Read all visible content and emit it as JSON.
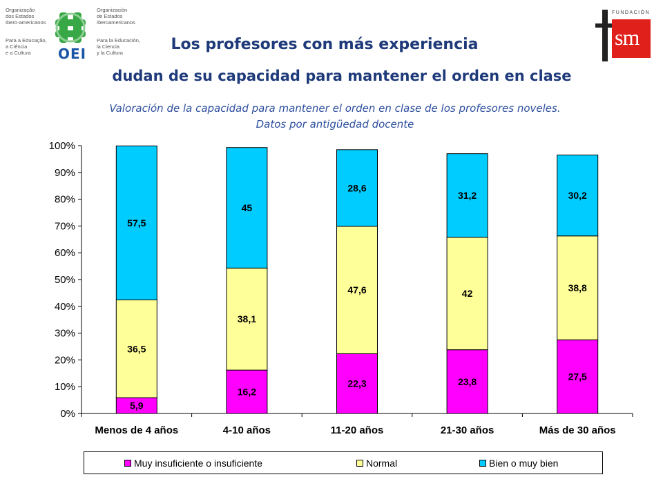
{
  "header": {
    "title_line1": "Los profesores con más experiencia",
    "title_line2": "dudan de su capacidad para mantener el orden en clase",
    "subtitle_line1": "Valoración de la capacidad para mantener el orden en clase de los profesores noveles.",
    "subtitle_line2": "Datos por antigüedad docente"
  },
  "logos": {
    "oei_left_text": "Organização\ndos Estados\nIbero-americanos",
    "oei_left_sub": "Para a Educação,\na Ciência\ne a Cultura",
    "oei_right_text": "Organización\nde Estados\nIberoamericanos",
    "oei_right_sub": "Para la Educación,\nla Ciencia\ny la Cultura",
    "oei_mark": "OEI",
    "fsm_top": "FUNDACIÓN",
    "fsm_mark": "sm"
  },
  "colors": {
    "insuficiente": "#ff00ff",
    "normal": "#ffff99",
    "bien": "#00ccff",
    "title": "#1f3a7a",
    "subtitle": "#2e4f9e",
    "fsm_red": "#e0201b"
  },
  "chart_data": {
    "type": "bar",
    "stacked": true,
    "categories": [
      "Menos de 4 años",
      "4-10 años",
      "11-20 años",
      "21-30 años",
      "Más de 30 años"
    ],
    "series": [
      {
        "name": "Muy insuficiente o insuficiente",
        "values": [
          5.9,
          16.2,
          22.3,
          23.8,
          27.5
        ],
        "labels": [
          "5,9",
          "16,2",
          "22,3",
          "23,8",
          "27,5"
        ]
      },
      {
        "name": "Normal",
        "values": [
          36.5,
          38.1,
          47.6,
          42,
          38.8
        ],
        "labels": [
          "36,5",
          "38,1",
          "47,6",
          "42",
          "38,8"
        ]
      },
      {
        "name": "Bien o muy bien",
        "values": [
          57.5,
          45,
          28.6,
          31.2,
          30.2
        ],
        "labels": [
          "57,5",
          "45",
          "28,6",
          "31,2",
          "30,2"
        ]
      }
    ],
    "yticks": [
      "0%",
      "10%",
      "20%",
      "30%",
      "40%",
      "50%",
      "60%",
      "70%",
      "80%",
      "90%",
      "100%"
    ],
    "ylim": [
      0,
      100
    ],
    "grid": false,
    "legend_position": "bottom"
  }
}
